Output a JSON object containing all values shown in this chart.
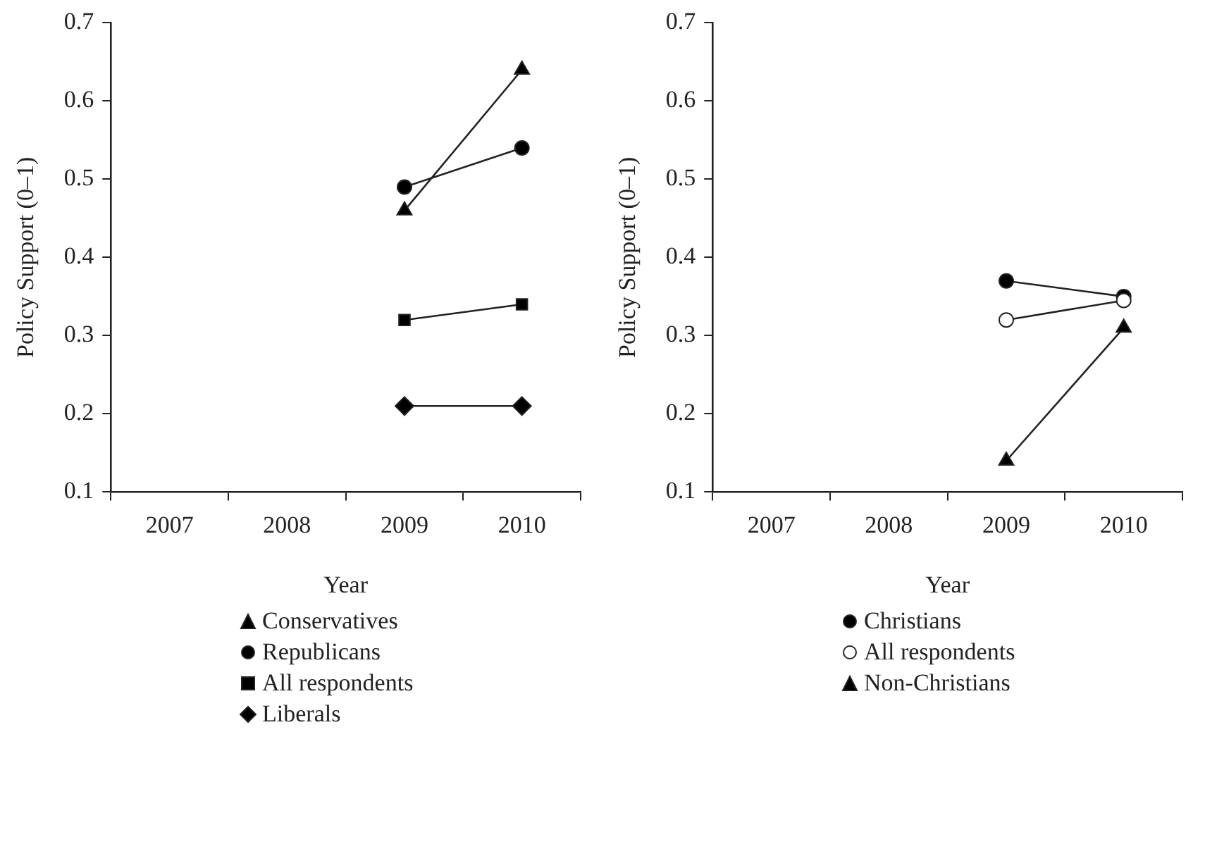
{
  "chart_data": [
    {
      "type": "line",
      "xlabel": "Year",
      "ylabel": "Policy Support (0–1)",
      "categories": [
        "2007",
        "2008",
        "2009",
        "2010"
      ],
      "ylim": [
        0.1,
        0.7
      ],
      "yticks": [
        0.1,
        0.2,
        0.3,
        0.4,
        0.5,
        0.6,
        0.7
      ],
      "grid": false,
      "legend": "bottom",
      "series": [
        {
          "name": "Conservatives",
          "color": "#000000",
          "marker": "triangle",
          "values": [
            null,
            null,
            0.46,
            0.64
          ]
        },
        {
          "name": "Republicans",
          "color": "#000000",
          "marker": "circle",
          "values": [
            null,
            null,
            0.49,
            0.54
          ]
        },
        {
          "name": "All respondents",
          "color": "#000000",
          "marker": "square",
          "values": [
            null,
            null,
            0.32,
            0.34
          ]
        },
        {
          "name": "Liberals",
          "color": "#000000",
          "marker": "diamond",
          "values": [
            null,
            null,
            0.21,
            0.21
          ]
        }
      ]
    },
    {
      "type": "line",
      "xlabel": "Year",
      "ylabel": "Policy Support (0–1)",
      "categories": [
        "2007",
        "2008",
        "2009",
        "2010"
      ],
      "ylim": [
        0.1,
        0.7
      ],
      "yticks": [
        0.1,
        0.2,
        0.3,
        0.4,
        0.5,
        0.6,
        0.7
      ],
      "grid": false,
      "legend": "bottom",
      "series": [
        {
          "name": "Christians",
          "color": "#000000",
          "marker": "circle",
          "values": [
            null,
            null,
            0.37,
            0.35
          ]
        },
        {
          "name": "All respondents",
          "color": "#ffffff",
          "marker": "circle",
          "values": [
            null,
            null,
            0.32,
            0.345
          ]
        },
        {
          "name": "Non-Christians",
          "color": "#000000",
          "marker": "triangle",
          "values": [
            null,
            null,
            0.14,
            0.31
          ]
        }
      ]
    }
  ]
}
